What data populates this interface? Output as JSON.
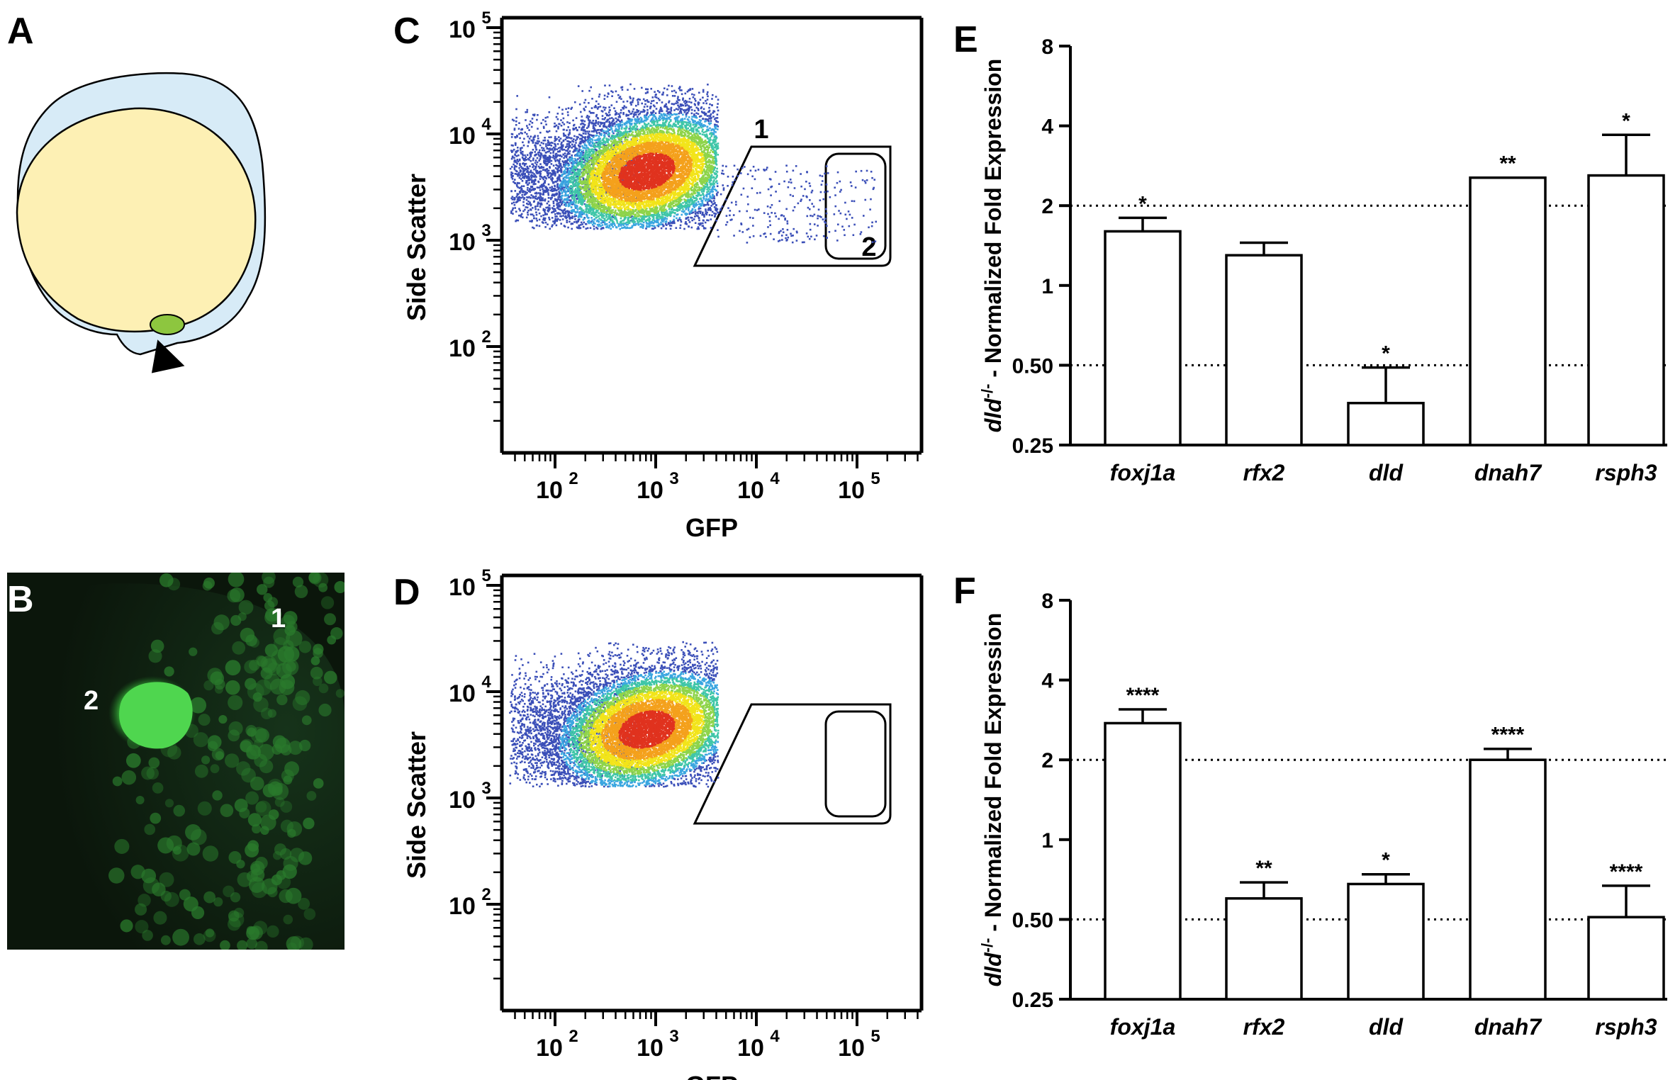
{
  "panels": {
    "a": {
      "letter": "A"
    },
    "b": {
      "letter": "B",
      "label_1": "1",
      "label_2": "2"
    },
    "c": {
      "letter": "C"
    },
    "d": {
      "letter": "D"
    },
    "e": {
      "letter": "E"
    },
    "f": {
      "letter": "F"
    }
  },
  "colors": {
    "yolk": "#fdf0b4",
    "chorion": "#d7ebf7",
    "kv": "#8dc63f",
    "bar_fill": "#ffffff",
    "fluor_bg": "#0b160b",
    "fluor_green": "#49d24a"
  },
  "flow": {
    "xlabel": "GFP",
    "ylabel": "Side Scatter",
    "x_ticks": [
      {
        "base": "10",
        "exp": "2"
      },
      {
        "base": "10",
        "exp": "3"
      },
      {
        "base": "10",
        "exp": "4"
      },
      {
        "base": "10",
        "exp": "5"
      }
    ],
    "y_ticks": [
      {
        "base": "10",
        "exp": "2"
      },
      {
        "base": "10",
        "exp": "3"
      },
      {
        "base": "10",
        "exp": "4"
      },
      {
        "base": "10",
        "exp": "5"
      }
    ],
    "gate_label_1": "1",
    "gate_label_2": "2"
  },
  "chart_data": [
    {
      "panel": "C",
      "type": "scatter",
      "description_of_marks": "dense cell population, peak GFP ~10^3 and side scatter ~5x10^3; sparse events extending into gates 1 and 2",
      "xlabel": "GFP",
      "ylabel": "Side Scatter",
      "xscale": "log",
      "yscale": "log",
      "gates": [
        "1",
        "2"
      ]
    },
    {
      "panel": "D",
      "type": "scatter",
      "description_of_marks": "dense cell population, peak GFP ~10^3 and side scatter ~5x10^3; no events in gates",
      "xlabel": "GFP",
      "ylabel": "Side Scatter",
      "xscale": "log",
      "yscale": "log",
      "gates": []
    },
    {
      "panel": "E",
      "type": "bar",
      "ylabel_italic": "dld",
      "ylabel_sup": "-/-",
      "ylabel_rest": " - Normalized Fold Expression",
      "yscale": "log2",
      "ylim": [
        0.25,
        8
      ],
      "yticks": [
        "0.25",
        "0.50",
        "1",
        "2",
        "4",
        "8"
      ],
      "reference_lines": [
        0.5,
        2
      ],
      "categories": [
        "foxj1a",
        "rfx2",
        "dld",
        "dnah7",
        "rsph3"
      ],
      "values": [
        1.6,
        1.3,
        0.36,
        2.55,
        2.6
      ],
      "error_upper": [
        1.8,
        1.45,
        0.49,
        2.55,
        3.7
      ],
      "significance": [
        "*",
        "",
        "*",
        "**",
        "*"
      ]
    },
    {
      "panel": "F",
      "type": "bar",
      "ylabel_italic": "dld",
      "ylabel_sup": "-/-",
      "ylabel_rest": " - Normalized Fold Expression",
      "yscale": "log2",
      "ylim": [
        0.25,
        8
      ],
      "yticks": [
        "0.25",
        "0.50",
        "1",
        "2",
        "4",
        "8"
      ],
      "reference_lines": [
        0.5,
        2
      ],
      "categories": [
        "foxj1a",
        "rfx2",
        "dld",
        "dnah7",
        "rsph3"
      ],
      "values": [
        2.75,
        0.6,
        0.68,
        2.0,
        0.51
      ],
      "error_upper": [
        3.1,
        0.69,
        0.74,
        2.2,
        0.67
      ],
      "significance": [
        "****",
        "**",
        "*",
        "****",
        "****"
      ]
    }
  ]
}
